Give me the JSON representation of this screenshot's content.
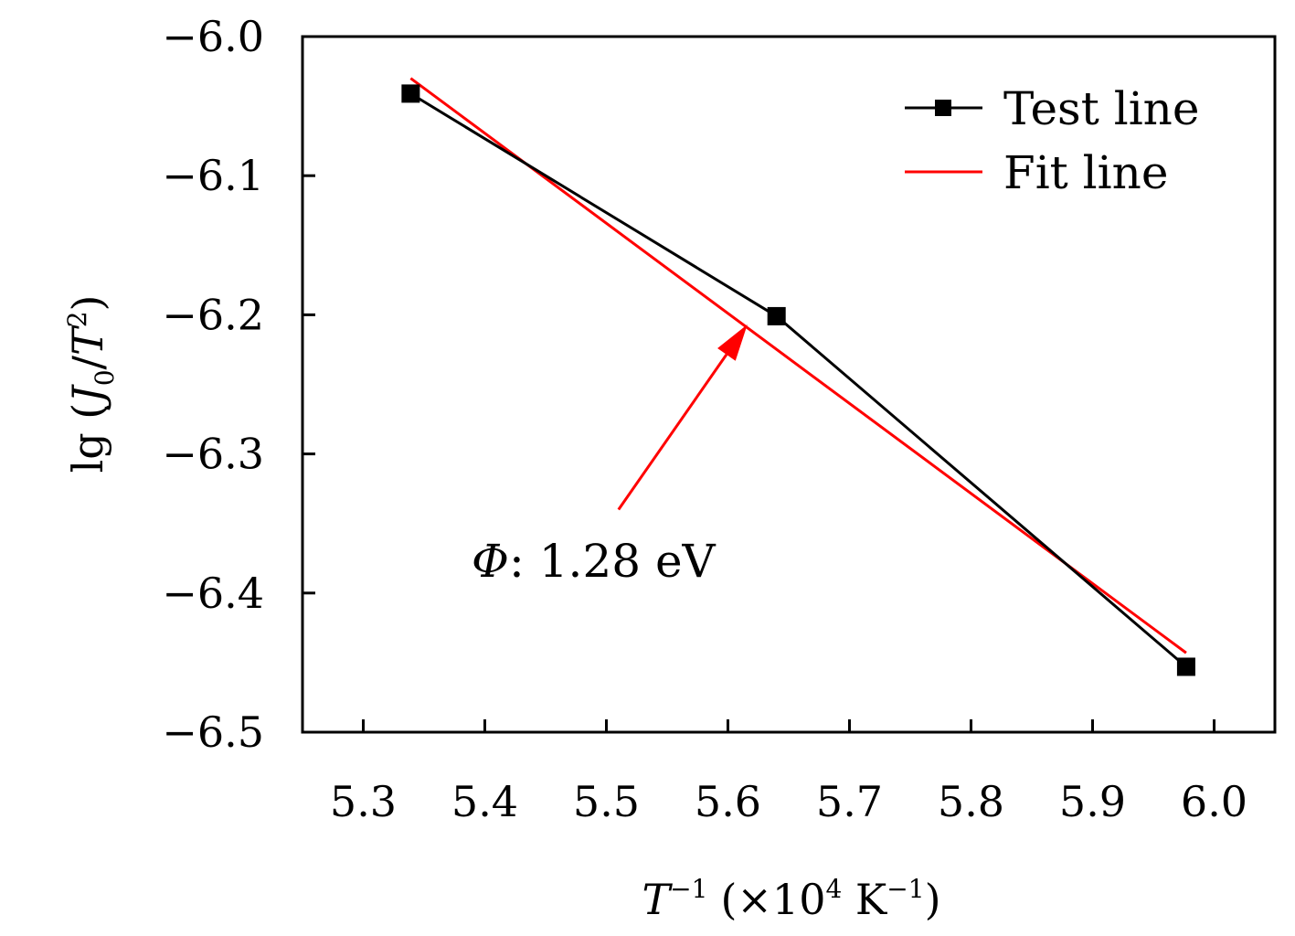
{
  "chart_data": {
    "type": "line",
    "xlabel": {
      "var": "T",
      "exp": "−1",
      "unit_open": "(×10",
      "unit_exp": "4",
      "unit_k": " K",
      "unit_k_exp": "−1",
      "unit_close": ")"
    },
    "ylabel": {
      "prefix": "lg (",
      "var_j": "J",
      "sub": "0",
      "slash": "/",
      "var_t": "T",
      "sup": "2",
      "close": ")"
    },
    "xlim": [
      5.25,
      6.05
    ],
    "ylim": [
      -6.5,
      -6.0
    ],
    "x_ticks": [
      "5.3",
      "5.4",
      "5.5",
      "5.6",
      "5.7",
      "5.8",
      "5.9",
      "6.0"
    ],
    "y_ticks": [
      "−6.0",
      "−6.1",
      "−6.2",
      "−6.3",
      "−6.4",
      "−6.5"
    ],
    "series": [
      {
        "name": "Test line",
        "color": "#000000",
        "marker": "square",
        "x": [
          5.339,
          5.64,
          5.977
        ],
        "y": [
          -6.041,
          -6.201,
          -6.453
        ]
      },
      {
        "name": "Fit line",
        "color": "#ff0000",
        "marker": "none",
        "x": [
          5.339,
          5.977
        ],
        "y": [
          -6.03,
          -6.443
        ]
      }
    ],
    "legend": {
      "position": "top-right"
    },
    "annotation": {
      "symbol": "Φ",
      "text": ": 1.28 eV",
      "arrow_color": "#ff0000",
      "arrow_to": [
        5.616,
        -6.207
      ],
      "arrow_from": [
        5.51,
        -6.34
      ]
    },
    "grid": false
  }
}
